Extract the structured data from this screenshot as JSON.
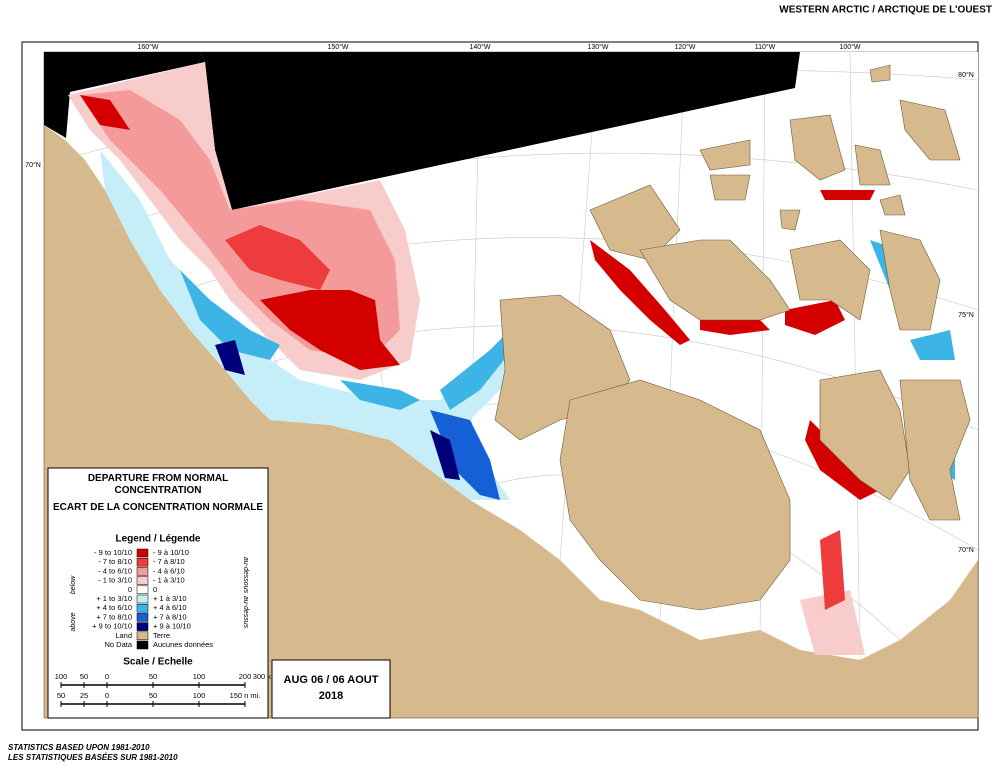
{
  "header": {
    "title": "WESTERN ARCTIC / ARCTIQUE DE L'OUEST"
  },
  "map": {
    "longitude_labels": [
      "160°W",
      "150°W",
      "140°W",
      "130°W",
      "120°W",
      "110°W",
      "100°W"
    ],
    "latitude_labels_right": [
      "80°N",
      "75°N",
      "70°N"
    ],
    "latitude_labels_left": [
      "70°N"
    ]
  },
  "legend": {
    "title_en": "DEPARTURE FROM NORMAL CONCENTRATION",
    "title_fr": "ECART DE LA CONCENTRATION NORMALE",
    "heading": "Legend / Légende",
    "side_labels": {
      "below": "below",
      "above": "above",
      "below_fr": "au-dessous",
      "above_fr": "au-dessus"
    },
    "items": [
      {
        "en": "- 9 to 10/10",
        "fr": "- 9 à 10/10",
        "color": "#d40000"
      },
      {
        "en": "- 7 to 8/10",
        "fr": "- 7 à 8/10",
        "color": "#ee3b3b"
      },
      {
        "en": "- 4 to 6/10",
        "fr": "- 4 à 6/10",
        "color": "#f49a9a"
      },
      {
        "en": "- 1 to 3/10",
        "fr": "- 1 à 3/10",
        "color": "#f9cccc"
      },
      {
        "en": "0",
        "fr": "0",
        "color": "#ffffff"
      },
      {
        "en": "+ 1 to 3/10",
        "fr": "+ 1 à 3/10",
        "color": "#c6eef8"
      },
      {
        "en": "+ 4 to 6/10",
        "fr": "+ 4 à 6/10",
        "color": "#3cb4e6"
      },
      {
        "en": "+ 7 to 8/10",
        "fr": "+ 7 à 8/10",
        "color": "#1560d6"
      },
      {
        "en": "+ 9 to 10/10",
        "fr": "+ 9 à 10/10",
        "color": "#00007a"
      },
      {
        "en": "Land",
        "fr": "Terre",
        "color": "#d6b98c"
      },
      {
        "en": "No Data",
        "fr": "Aucunes données",
        "color": "#000000"
      }
    ]
  },
  "scale": {
    "heading": "Scale / Echelle",
    "km_labels": [
      "100",
      "50",
      "0",
      "50",
      "100",
      "200",
      "300 km"
    ],
    "nmi_labels": [
      "50",
      "25",
      "0",
      "50",
      "100",
      "150 n mi."
    ]
  },
  "date": {
    "line1": "AUG 06 / 06 AOUT",
    "line2": "2018"
  },
  "footer": {
    "lines": [
      "STATISTICS BASED UPON 1981-2010",
      "LES STATISTIQUES BASÉES SUR 1981-2010"
    ]
  }
}
